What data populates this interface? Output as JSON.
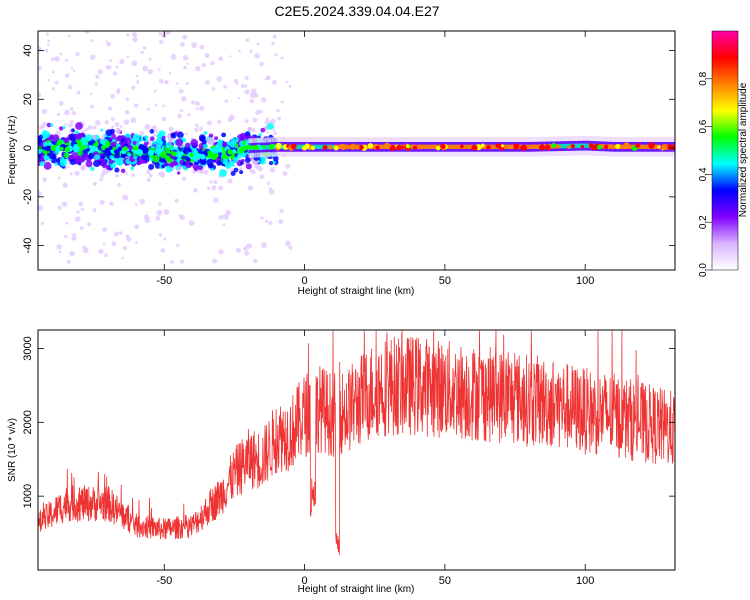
{
  "title": "C2E5.2024.339.04.04.E27",
  "chart_data": [
    {
      "type": "heatmap",
      "xlabel": "Height of straight line (km)",
      "ylabel": "Frequency (Hz)",
      "xlim": [
        -95,
        132
      ],
      "ylim": [
        -50,
        48
      ],
      "xticks": [
        -50,
        0,
        50,
        100
      ],
      "yticks": [
        -40,
        -20,
        0,
        20,
        40
      ],
      "colorbar": {
        "label": "Normalized spectral amplitude",
        "range": [
          0.0,
          1.0
        ],
        "ticks": [
          0.0,
          0.2,
          0.4,
          0.6,
          0.8
        ],
        "colors": [
          "#ffffff",
          "#d9b3ff",
          "#8000ff",
          "#0000ff",
          "#00ffff",
          "#00ff00",
          "#ffff00",
          "#ff8000",
          "#ff0000",
          "#ff00aa"
        ]
      },
      "ridge": {
        "x": [
          -95,
          -80,
          -60,
          -40,
          -30,
          -20,
          -10,
          0,
          20,
          50,
          80,
          100,
          110,
          132
        ],
        "y": [
          0,
          0,
          -1,
          -3,
          -3,
          0,
          0.5,
          0.5,
          0.5,
          0.5,
          0.5,
          1,
          0.5,
          0.5
        ]
      }
    },
    {
      "type": "line",
      "xlabel": "Height of straight line (km)",
      "ylabel": "SNR (10 * v/v)",
      "xlim": [
        -95,
        132
      ],
      "ylim": [
        0,
        3250
      ],
      "xticks": [
        -50,
        0,
        50,
        100
      ],
      "yticks": [
        1000,
        2000,
        3000
      ],
      "series": [
        {
          "color": "#ee3333",
          "envelope_x": [
            -95,
            -85,
            -70,
            -60,
            -50,
            -40,
            -30,
            -25,
            -20,
            -15,
            -10,
            -5,
            0,
            5,
            10,
            15,
            20,
            25,
            30,
            40,
            50,
            60,
            70,
            80,
            90,
            100,
            110,
            120,
            132
          ],
          "envelope_y": [
            620,
            900,
            900,
            600,
            550,
            600,
            1000,
            1300,
            1500,
            1500,
            1800,
            1850,
            2100,
            2200,
            2100,
            2150,
            2300,
            2450,
            2500,
            2500,
            2450,
            2400,
            2350,
            2300,
            2250,
            2150,
            2100,
            2000,
            1900
          ]
        }
      ]
    }
  ]
}
